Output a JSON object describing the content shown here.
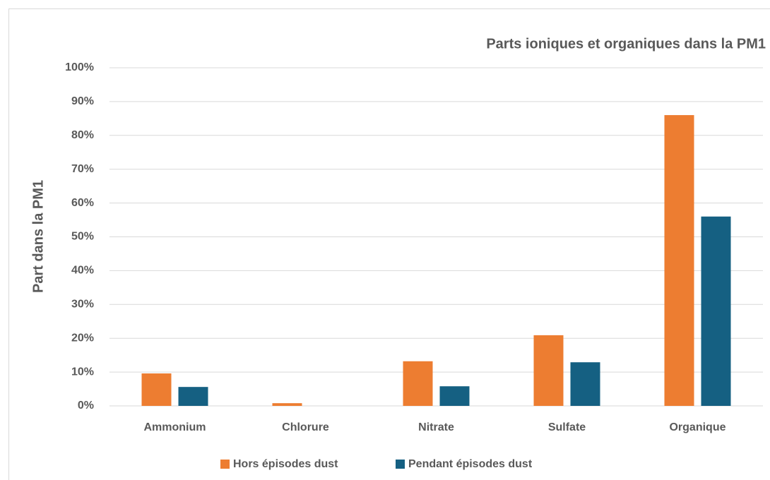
{
  "chart_data": {
    "type": "bar",
    "title": "Parts ioniques et organiques dans la PM1",
    "y_label": "Part dans la PM1",
    "categories": [
      "Ammonium",
      "Chlorure",
      "Nitrate",
      "Sulfate",
      "Organique"
    ],
    "series": [
      {
        "name": "Hors épisodes dust",
        "color": "#ED7D31",
        "values": [
          9.6,
          0.8,
          13.2,
          20.9,
          86
        ]
      },
      {
        "name": "Pendant épisodes dust",
        "color": "#156082",
        "values": [
          5.6,
          0,
          5.8,
          12.9,
          56
        ]
      }
    ],
    "ylim": [
      0,
      100
    ],
    "yticks": [
      {
        "value": 0,
        "label": "0%"
      },
      {
        "value": 10,
        "label": "10%"
      },
      {
        "value": 20,
        "label": "20%"
      },
      {
        "value": 30,
        "label": "30%"
      },
      {
        "value": 40,
        "label": "40%"
      },
      {
        "value": 50,
        "label": "50%"
      },
      {
        "value": 60,
        "label": "60%"
      },
      {
        "value": 70,
        "label": "70%"
      },
      {
        "value": 80,
        "label": "80%"
      },
      {
        "value": 90,
        "label": "90%"
      },
      {
        "value": 100,
        "label": "100%"
      }
    ],
    "grid": true,
    "legend": "bottom"
  }
}
